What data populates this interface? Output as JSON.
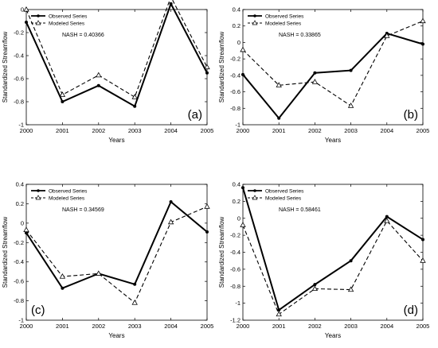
{
  "figure": {
    "background": "#ffffff",
    "axis_color": "#000000"
  },
  "chart_data": [
    {
      "type": "line",
      "panel_label": "(a)",
      "annotation": "NASH = 0.40366",
      "xlabel": "Years",
      "ylabel": "Standardized Streamflow",
      "x": [
        2000,
        2001,
        2002,
        2003,
        2004,
        2005
      ],
      "xlim": [
        2000,
        2005
      ],
      "ylim": [
        -1,
        0
      ],
      "yticks": [
        -1,
        -0.8,
        -0.6,
        -0.4,
        -0.2,
        0
      ],
      "ytick_labels": [
        "-1",
        "-0.8",
        "-0.6",
        "-0.4",
        "-0.2",
        "0"
      ],
      "legend_position": "top-left",
      "letter_position": "bottom-right",
      "series": [
        {
          "name": "Observed Series",
          "values": [
            -0.11,
            -0.8,
            -0.66,
            -0.84,
            0.05,
            -0.55
          ],
          "line_style": "solid",
          "marker": "dot"
        },
        {
          "name": "Modeled Series",
          "values": [
            0.0,
            -0.74,
            -0.57,
            -0.76,
            0.11,
            -0.5
          ],
          "line_style": "dashed",
          "marker": "triangle"
        }
      ]
    },
    {
      "type": "line",
      "panel_label": "(b)",
      "annotation": "NASH = 0.33865",
      "xlabel": "Years",
      "ylabel": "Standardized Streamflow",
      "x": [
        2000,
        2001,
        2002,
        2003,
        2004,
        2005
      ],
      "xlim": [
        2000,
        2005
      ],
      "ylim": [
        -1,
        0.4
      ],
      "yticks": [
        -1,
        -0.8,
        -0.6,
        -0.4,
        -0.2,
        0,
        0.2,
        0.4
      ],
      "ytick_labels": [
        "-1",
        "-0.8",
        "-0.6",
        "-0.4",
        "-0.2",
        "0",
        "0.2",
        "0.4"
      ],
      "legend_position": "top-left",
      "letter_position": "bottom-right",
      "series": [
        {
          "name": "Observed Series",
          "values": [
            -0.39,
            -0.92,
            -0.37,
            -0.34,
            0.11,
            -0.02
          ],
          "line_style": "solid",
          "marker": "dot"
        },
        {
          "name": "Modeled Series",
          "values": [
            -0.09,
            -0.52,
            -0.48,
            -0.77,
            0.08,
            0.26
          ],
          "line_style": "dashed",
          "marker": "triangle"
        }
      ]
    },
    {
      "type": "line",
      "panel_label": "(c)",
      "annotation": "NASH = 0.34569",
      "xlabel": "Years",
      "ylabel": "Standardized Streamflow",
      "x": [
        2000,
        2001,
        2002,
        2003,
        2004,
        2005
      ],
      "xlim": [
        2000,
        2005
      ],
      "ylim": [
        -1,
        0.4
      ],
      "yticks": [
        -1,
        -0.8,
        -0.6,
        -0.4,
        -0.2,
        0,
        0.2,
        0.4
      ],
      "ytick_labels": [
        "-1",
        "-0.8",
        "-0.6",
        "-0.4",
        "-0.2",
        "0",
        "0.2",
        "0.4"
      ],
      "legend_position": "top-left",
      "letter_position": "bottom-left",
      "series": [
        {
          "name": "Observed Series",
          "values": [
            -0.1,
            -0.67,
            -0.52,
            -0.63,
            0.22,
            -0.09
          ],
          "line_style": "solid",
          "marker": "dot"
        },
        {
          "name": "Modeled Series",
          "values": [
            -0.07,
            -0.55,
            -0.52,
            -0.82,
            0.01,
            0.17
          ],
          "line_style": "dashed",
          "marker": "triangle"
        }
      ]
    },
    {
      "type": "line",
      "panel_label": "(d)",
      "annotation": "NASH = 0.58461",
      "xlabel": "Years",
      "ylabel": "Standardized Streamflow",
      "x": [
        2000,
        2001,
        2002,
        2003,
        2004,
        2005
      ],
      "xlim": [
        2000,
        2005
      ],
      "ylim": [
        -1.2,
        0.4
      ],
      "yticks": [
        -1.2,
        -1,
        -0.8,
        -0.6,
        -0.4,
        -0.2,
        0,
        0.2,
        0.4
      ],
      "ytick_labels": [
        "-1.2",
        "-1",
        "-0.8",
        "-0.6",
        "-0.4",
        "-0.2",
        "0",
        "0.2",
        "0.4"
      ],
      "legend_position": "top-left",
      "letter_position": "bottom-right",
      "series": [
        {
          "name": "Observed Series",
          "values": [
            0.36,
            -1.08,
            -0.78,
            -0.5,
            0.02,
            -0.25
          ],
          "line_style": "solid",
          "marker": "dot"
        },
        {
          "name": "Modeled Series",
          "values": [
            -0.08,
            -1.13,
            -0.83,
            -0.84,
            -0.03,
            -0.5
          ],
          "line_style": "dashed",
          "marker": "triangle"
        }
      ]
    }
  ]
}
